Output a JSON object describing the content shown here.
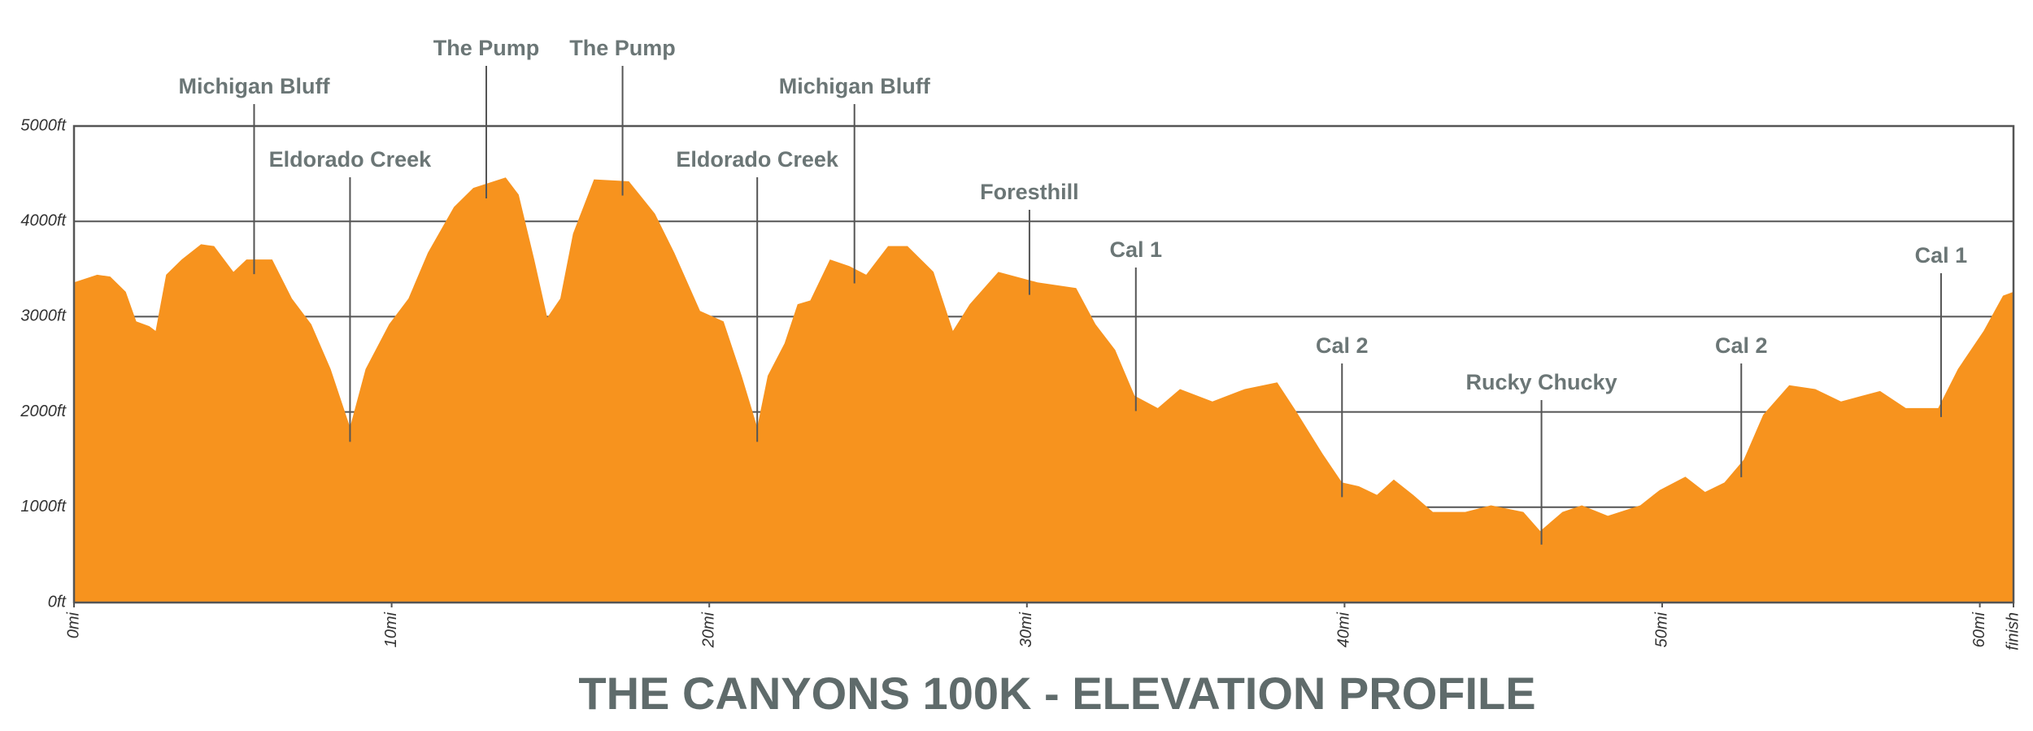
{
  "chart_data": {
    "type": "area",
    "title": "THE CANYONS 100K - ELEVATION PROFILE",
    "color": "#f7931e",
    "x": [
      0,
      0.73,
      1.14,
      1.63,
      1.96,
      2.37,
      2.57,
      2.9,
      3.39,
      4.0,
      4.41,
      5.02,
      5.43,
      6.24,
      6.86,
      7.47,
      8.08,
      8.69,
      9.18,
      9.92,
      10.53,
      11.14,
      11.96,
      12.57,
      13.59,
      14.0,
      14.49,
      14.9,
      15.31,
      15.71,
      16.37,
      17.47,
      18.29,
      18.9,
      19.71,
      20.45,
      21.02,
      21.51,
      21.84,
      22.37,
      22.78,
      23.18,
      23.8,
      24.41,
      24.94,
      25.63,
      26.24,
      27.06,
      27.67,
      28.2,
      29.1,
      30.33,
      31.55,
      32.16,
      32.78,
      33.39,
      34.12,
      34.82,
      35.84,
      36.86,
      37.88,
      38.49,
      39.31,
      39.92,
      40.45,
      41.02,
      41.55,
      42.16,
      42.78,
      43.8,
      44.61,
      45.63,
      46.16,
      46.86,
      47.47,
      48.29,
      49.31,
      49.92,
      50.73,
      51.35,
      51.96,
      52.57,
      53.18,
      54.0,
      54.82,
      55.63,
      56.86,
      57.67,
      58.69,
      59.31,
      60.12,
      60.73,
      61.06
    ],
    "values": [
      3360,
      3440,
      3420,
      3260,
      2950,
      2900,
      2850,
      3440,
      3600,
      3760,
      3740,
      3470,
      3600,
      3600,
      3190,
      2920,
      2450,
      1840,
      2450,
      2920,
      3190,
      3670,
      4150,
      4350,
      4460,
      4280,
      3600,
      2990,
      3190,
      3870,
      4440,
      4420,
      4080,
      3670,
      3060,
      2950,
      2380,
      1840,
      2380,
      2720,
      3130,
      3170,
      3600,
      3530,
      3440,
      3740,
      3740,
      3470,
      2850,
      3130,
      3470,
      3360,
      3300,
      2920,
      2650,
      2170,
      2040,
      2240,
      2110,
      2240,
      2310,
      2000,
      1560,
      1260,
      1220,
      1130,
      1290,
      1130,
      950,
      950,
      1020,
      950,
      750,
      950,
      1020,
      910,
      1020,
      1180,
      1320,
      1160,
      1260,
      1500,
      1970,
      2280,
      2240,
      2110,
      2220,
      2040,
      2040,
      2450,
      2850,
      3220,
      3260
    ],
    "xlim": [
      0,
      61.06
    ],
    "xticks": [
      {
        "value": 0,
        "label": "0mi"
      },
      {
        "value": 10,
        "label": "10mi"
      },
      {
        "value": 20,
        "label": "20mi"
      },
      {
        "value": 30,
        "label": "30mi"
      },
      {
        "value": 40,
        "label": "40mi"
      },
      {
        "value": 50,
        "label": "50mi"
      },
      {
        "value": 60,
        "label": "60mi"
      },
      {
        "value": 61.06,
        "label": "finish"
      }
    ],
    "ylim": [
      0,
      5000
    ],
    "yticks": [
      {
        "value": 0,
        "label": "0ft"
      },
      {
        "value": 1000,
        "label": "1000ft"
      },
      {
        "value": 2000,
        "label": "2000ft"
      },
      {
        "value": 3000,
        "label": "3000ft"
      },
      {
        "value": 4000,
        "label": "4000ft"
      },
      {
        "value": 5000,
        "label": "5000ft"
      }
    ],
    "grid": true,
    "annotations": [
      {
        "text": "Michigan Bluff",
        "x": 5.67
      },
      {
        "text": "Eldorado Creek",
        "x": 8.69
      },
      {
        "text": "The Pump",
        "x": 12.98
      },
      {
        "text": "The Pump",
        "x": 17.27
      },
      {
        "text": "Eldorado Creek",
        "x": 21.51
      },
      {
        "text": "Michigan Bluff",
        "x": 24.57
      },
      {
        "text": "Foresthill",
        "x": 30.08
      },
      {
        "text": "Cal 1",
        "x": 33.43
      },
      {
        "text": "Cal 2",
        "x": 39.92
      },
      {
        "text": "Rucky Chucky",
        "x": 46.2
      },
      {
        "text": "Cal 2",
        "x": 52.49
      },
      {
        "text": "Cal 1",
        "x": 58.78
      }
    ]
  }
}
